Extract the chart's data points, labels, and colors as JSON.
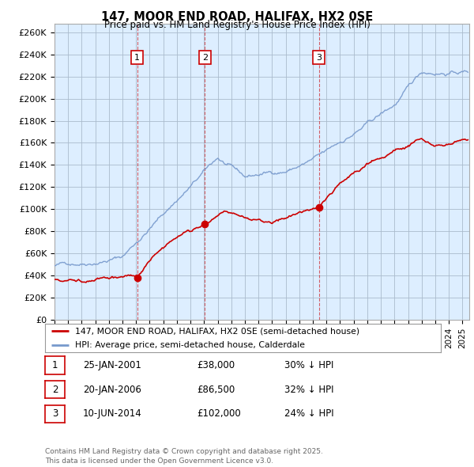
{
  "title": "147, MOOR END ROAD, HALIFAX, HX2 0SE",
  "subtitle": "Price paid vs. HM Land Registry's House Price Index (HPI)",
  "ylabel_ticks": [
    "£0",
    "£20K",
    "£40K",
    "£60K",
    "£80K",
    "£100K",
    "£120K",
    "£140K",
    "£160K",
    "£180K",
    "£200K",
    "£220K",
    "£240K",
    "£260K"
  ],
  "ytick_values": [
    0,
    20000,
    40000,
    60000,
    80000,
    100000,
    120000,
    140000,
    160000,
    180000,
    200000,
    220000,
    240000,
    260000
  ],
  "ylim": [
    0,
    268000
  ],
  "xlim_start": 1995.0,
  "xlim_end": 2025.5,
  "sales": [
    {
      "label": "1",
      "date_num": 2001.08,
      "price": 38000
    },
    {
      "label": "2",
      "date_num": 2006.06,
      "price": 86500
    },
    {
      "label": "3",
      "date_num": 2014.44,
      "price": 102000
    }
  ],
  "vlines": [
    2001.08,
    2006.06,
    2014.44
  ],
  "sale_color": "#cc0000",
  "hpi_color": "#7799cc",
  "chart_bg_color": "#ddeeff",
  "background_color": "#ffffff",
  "grid_color": "#aabbcc",
  "legend_label_sale": "147, MOOR END ROAD, HALIFAX, HX2 0SE (semi-detached house)",
  "legend_label_hpi": "HPI: Average price, semi-detached house, Calderdale",
  "table_rows": [
    {
      "num": "1",
      "date": "25-JAN-2001",
      "price": "£38,000",
      "pct": "30% ↓ HPI"
    },
    {
      "num": "2",
      "date": "20-JAN-2006",
      "price": "£86,500",
      "pct": "32% ↓ HPI"
    },
    {
      "num": "3",
      "date": "10-JUN-2014",
      "price": "£102,000",
      "pct": "24% ↓ HPI"
    }
  ],
  "footer": "Contains HM Land Registry data © Crown copyright and database right 2025.\nThis data is licensed under the Open Government Licence v3.0."
}
